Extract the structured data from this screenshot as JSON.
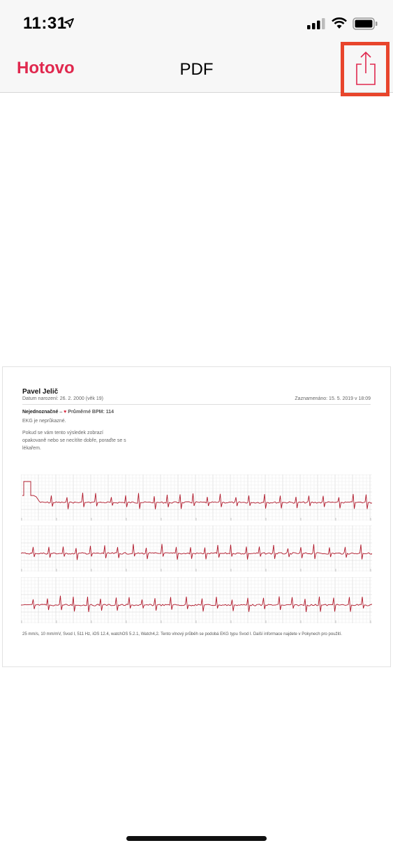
{
  "status_bar": {
    "time": "11:31"
  },
  "nav": {
    "done_label": "Hotovo",
    "title": "PDF"
  },
  "document": {
    "patient_name": "Pavel Jelič",
    "dob": "Datum narození: 26. 2. 2000 (věk 19)",
    "recorded": "Zaznamenáno: 15. 5. 2019 v 18:09",
    "classification": "Nejednoznačné",
    "separator": "–",
    "bpm": "Průměrné BPM: 114",
    "ekg_note": "EKG je neprůkazné.",
    "advice": "Pokud se vám tento výsledek zobrazí opakovaně nebo se necítíte dobře, poraďte se s lékařem.",
    "footer": "25 mm/s, 10 mm/mV, Svod I, 511 Hz, iOS 12.4, watchOS 5.2.1, Watch4,2. Tento vlnový průběh se podobá EKG typu Svod I. Další informace najdete v Pokynech pro použití."
  },
  "colors": {
    "accent": "#e0284e",
    "highlight": "#e8452c",
    "ecg": "#b0182a"
  }
}
